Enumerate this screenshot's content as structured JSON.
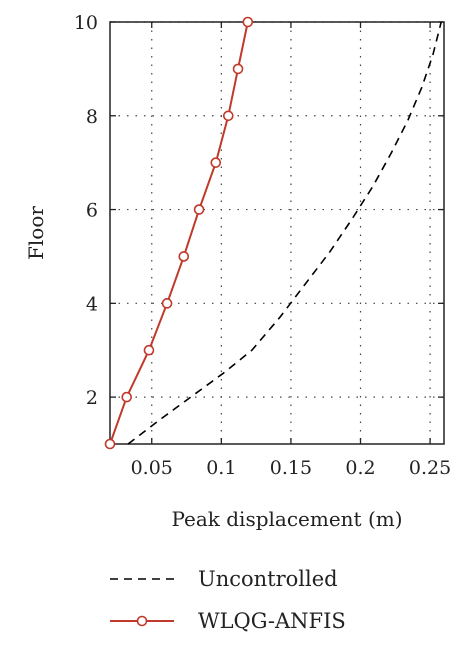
{
  "chart_data": {
    "type": "line",
    "xlabel": "Peak displacement (m)",
    "ylabel": "Floor",
    "xlim": [
      0.02,
      0.26
    ],
    "ylim": [
      1,
      10
    ],
    "xticks": [
      0.05,
      0.1,
      0.15,
      0.2,
      0.25
    ],
    "xtick_labels": [
      "0.05",
      "0.1",
      "0.15",
      "0.2",
      "0.25"
    ],
    "yticks": [
      2,
      4,
      6,
      8,
      10
    ],
    "ytick_labels": [
      "2",
      "4",
      "6",
      "8",
      "10"
    ],
    "grid": true,
    "legend_position": "bottom",
    "series": [
      {
        "name": "Uncontrolled",
        "style": "dashed",
        "color": "#000000",
        "marker": "none",
        "x": [
          0.033,
          0.055,
          0.078,
          0.101,
          0.122,
          0.142,
          0.16,
          0.178,
          0.194,
          0.209,
          0.222,
          0.234,
          0.244,
          0.252,
          0.258
        ],
        "y": [
          1.0,
          1.5,
          2.0,
          2.5,
          3.0,
          3.7,
          4.4,
          5.1,
          5.8,
          6.5,
          7.2,
          7.9,
          8.6,
          9.3,
          10.0
        ]
      },
      {
        "name": "WLQG-ANFIS",
        "style": "solid",
        "color": "#c0392b",
        "marker": "circle",
        "x": [
          0.02,
          0.032,
          0.048,
          0.061,
          0.073,
          0.084,
          0.096,
          0.105,
          0.112,
          0.119
        ],
        "y": [
          1,
          2,
          3,
          4,
          5,
          6,
          7,
          8,
          9,
          10
        ]
      }
    ]
  }
}
